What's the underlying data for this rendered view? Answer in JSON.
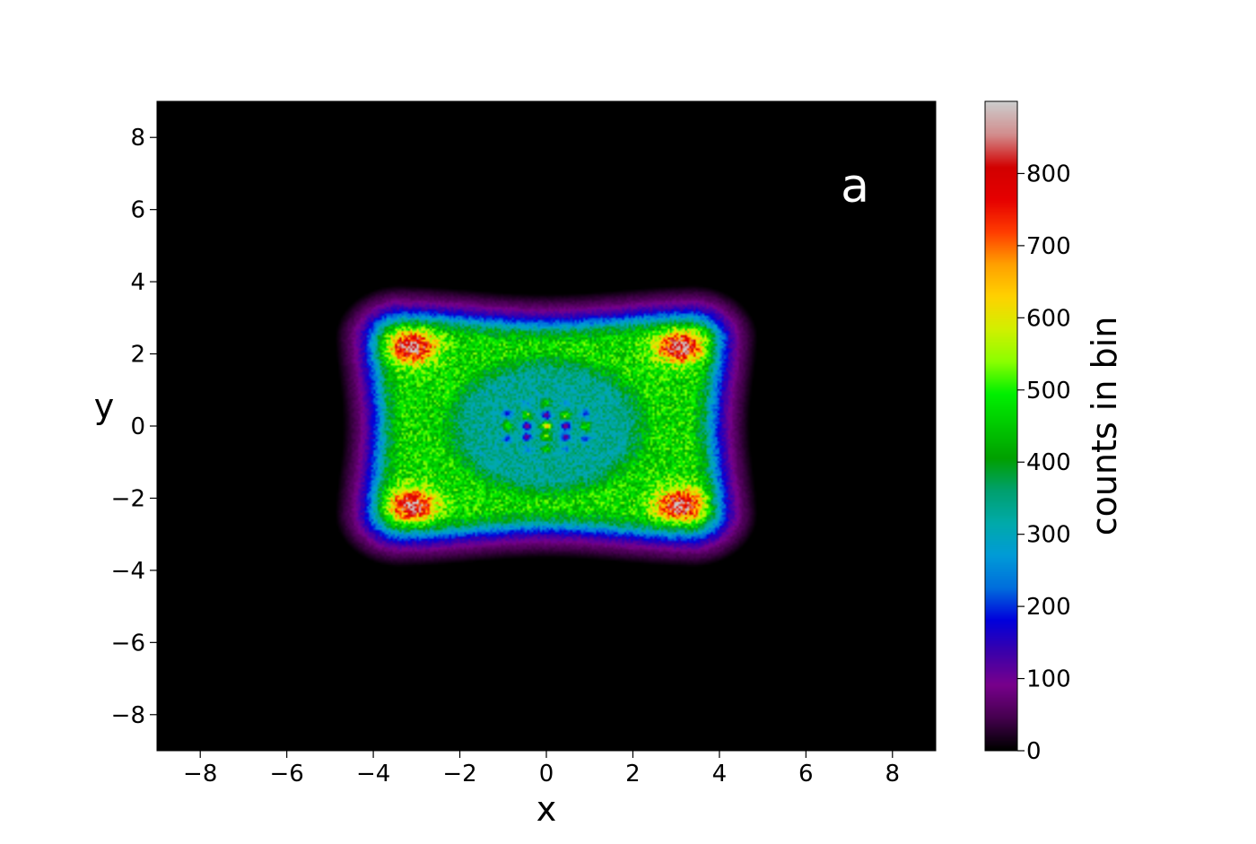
{
  "chart_data": {
    "type": "heatmap",
    "title": "",
    "panel_label": "a",
    "xlabel": "x",
    "ylabel": "y",
    "xlim": [
      -9,
      9
    ],
    "ylim": [
      -9,
      9
    ],
    "x_ticks": [
      -8,
      -6,
      -4,
      -2,
      0,
      2,
      4,
      6,
      8
    ],
    "y_ticks": [
      -8,
      -6,
      -4,
      -2,
      0,
      2,
      4,
      6,
      8
    ],
    "x_tick_labels": [
      "−8",
      "−6",
      "−4",
      "−2",
      "0",
      "2",
      "4",
      "6",
      "8"
    ],
    "y_tick_labels": [
      "−8",
      "−6",
      "−4",
      "−2",
      "0",
      "2",
      "4",
      "6",
      "8"
    ],
    "grid": false,
    "colormap": "nipy_spectral",
    "colorbar": {
      "label": "counts in bin",
      "range": [
        0,
        900
      ],
      "ticks": [
        0,
        100,
        200,
        300,
        400,
        500,
        600,
        700,
        800
      ],
      "tick_labels": [
        "0",
        "100",
        "200",
        "300",
        "400",
        "500",
        "600",
        "700",
        "800"
      ]
    },
    "distribution": {
      "background_counts": 0,
      "outer_boundary": {
        "x_half_width": 4.6,
        "y_half_height": 3.6,
        "corner_radius": 1.3,
        "edge_bulge": 0.5
      },
      "band_levels": [
        {
          "depth": 0.0,
          "counts": 60
        },
        {
          "depth": 0.3,
          "counts": 150
        },
        {
          "depth": 0.5,
          "counts": 250
        },
        {
          "depth": 0.7,
          "counts": 380
        },
        {
          "depth": 1.0,
          "counts": 470
        }
      ],
      "corner_peaks": [
        {
          "x": -3.1,
          "y": 2.2,
          "counts": 850
        },
        {
          "x": 3.1,
          "y": 2.2,
          "counts": 850
        },
        {
          "x": -3.1,
          "y": -2.2,
          "counts": 850
        },
        {
          "x": 3.1,
          "y": -2.2,
          "counts": 850
        }
      ],
      "central_ellipse": {
        "x_radius": 2.2,
        "y_radius": 1.8,
        "counts": 330
      },
      "central_lattice_spots": [
        {
          "x": -0.45,
          "y": 0.3,
          "counts": 520
        },
        {
          "x": 0.0,
          "y": 0.3,
          "counts": 90
        },
        {
          "x": 0.45,
          "y": 0.3,
          "counts": 520
        },
        {
          "x": -0.45,
          "y": -0.3,
          "counts": 90
        },
        {
          "x": 0.0,
          "y": -0.3,
          "counts": 520
        },
        {
          "x": 0.45,
          "y": -0.3,
          "counts": 90
        },
        {
          "x": -0.45,
          "y": 0.0,
          "counts": 60
        },
        {
          "x": 0.0,
          "y": 0.0,
          "counts": 620
        },
        {
          "x": 0.45,
          "y": 0.0,
          "counts": 60
        },
        {
          "x": -0.9,
          "y": 0.0,
          "counts": 520
        },
        {
          "x": 0.9,
          "y": 0.0,
          "counts": 520
        },
        {
          "x": -0.9,
          "y": 0.35,
          "counts": 180
        },
        {
          "x": 0.9,
          "y": 0.35,
          "counts": 180
        },
        {
          "x": -0.9,
          "y": -0.35,
          "counts": 180
        },
        {
          "x": 0.9,
          "y": -0.35,
          "counts": 180
        },
        {
          "x": 0.0,
          "y": 0.65,
          "counts": 450
        },
        {
          "x": 0.0,
          "y": -0.65,
          "counts": 450
        },
        {
          "x": -0.45,
          "y": 0.65,
          "counts": 250
        },
        {
          "x": 0.45,
          "y": 0.65,
          "counts": 250
        },
        {
          "x": -0.45,
          "y": -0.65,
          "counts": 250
        },
        {
          "x": 0.45,
          "y": -0.65,
          "counts": 250
        }
      ]
    }
  }
}
